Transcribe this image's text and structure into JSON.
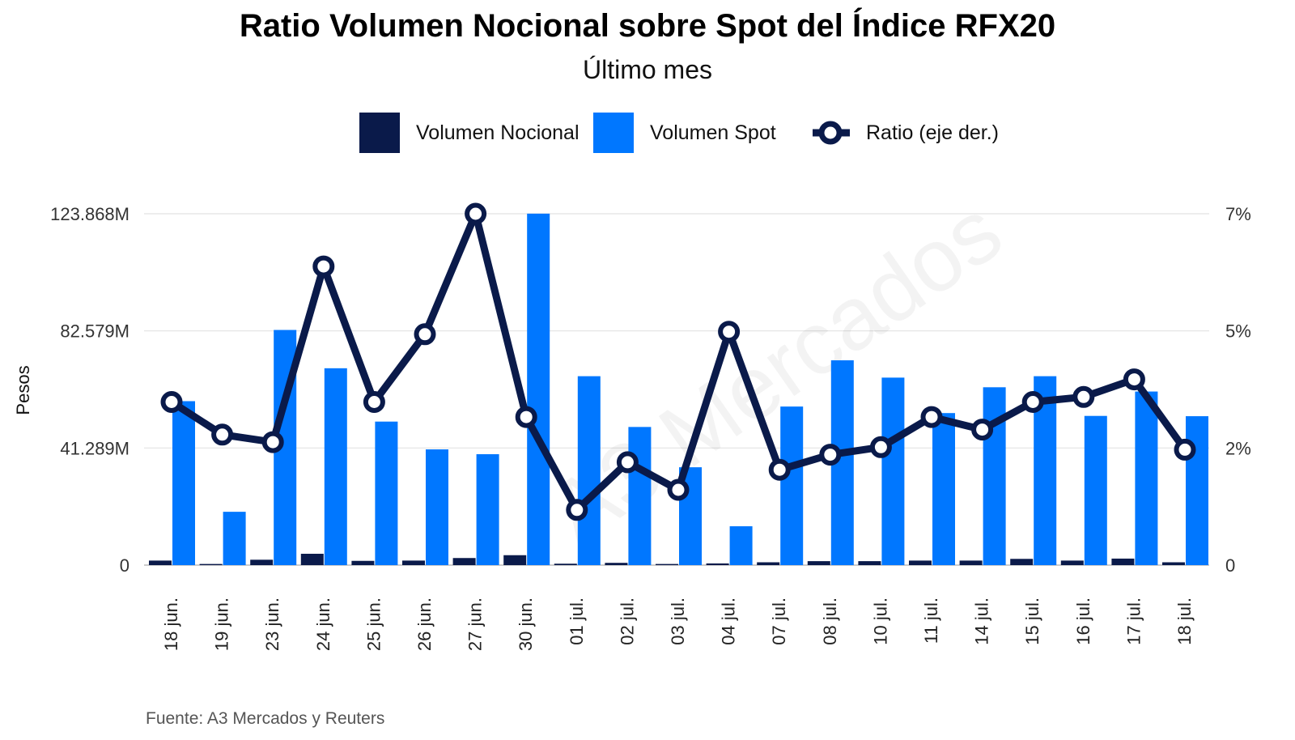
{
  "title": "Ratio Volumen Nocional sobre Spot del Índice RFX20",
  "subtitle": "Último mes",
  "source": "Fuente: A3 Mercados y Reuters",
  "watermark": "A3 Mercados",
  "colors": {
    "nocional": "#0a1a4a",
    "spot": "#0077ff",
    "ratio": "#0a1a4a"
  },
  "chart_data": {
    "type": "bar",
    "categories": [
      "18 jun.",
      "19 jun.",
      "23 jun.",
      "24 jun.",
      "25 jun.",
      "26 jun.",
      "27 jun.",
      "30 jun.",
      "01 jul.",
      "02 jul.",
      "03 jul.",
      "04 jul.",
      "07 jul.",
      "08 jul.",
      "10 jul.",
      "11 jul.",
      "14 jul.",
      "15 jul.",
      "16 jul.",
      "17 jul.",
      "18 jul."
    ],
    "ylabel": "Pesos",
    "y_ticks": [
      "0",
      "41.289M",
      "82.579M",
      "123.868M"
    ],
    "y_tick_values": [
      0,
      41.289,
      82.579,
      123.868
    ],
    "ylim": [
      0,
      123.868
    ],
    "y2_ticks": [
      "0",
      "2%",
      "5%",
      "7%"
    ],
    "y2_tick_values": [
      0,
      2.33,
      4.67,
      7.0
    ],
    "y2lim": [
      0,
      7.0
    ],
    "legend_position": "top",
    "grid": true,
    "series": [
      {
        "name": "Volumen Nocional",
        "type": "bar",
        "axis": "left",
        "values": [
          1.6,
          0.4,
          1.9,
          4.0,
          1.5,
          1.6,
          2.5,
          3.5,
          0.5,
          0.8,
          0.4,
          0.6,
          1.0,
          1.4,
          1.4,
          1.6,
          1.6,
          2.2,
          1.6,
          2.3,
          1.0
        ]
      },
      {
        "name": "Volumen Spot",
        "type": "bar",
        "axis": "left",
        "values": [
          57.8,
          18.8,
          82.9,
          69.4,
          50.6,
          40.8,
          39.1,
          123.9,
          66.6,
          48.7,
          34.5,
          13.7,
          55.9,
          72.2,
          66.1,
          53.6,
          62.7,
          66.6,
          52.6,
          61.2,
          52.5
        ]
      },
      {
        "name": "Ratio (eje der.)",
        "type": "line",
        "axis": "right",
        "values": [
          3.25,
          2.6,
          2.45,
          5.95,
          3.25,
          4.6,
          7.0,
          2.95,
          1.1,
          2.05,
          1.5,
          4.65,
          1.9,
          2.2,
          2.35,
          2.95,
          2.7,
          3.25,
          3.35,
          3.7,
          2.3
        ]
      }
    ]
  }
}
